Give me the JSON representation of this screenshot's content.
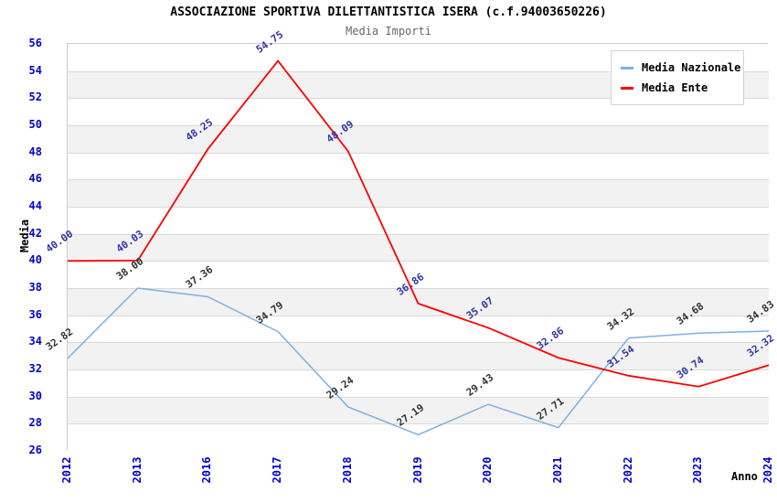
{
  "chart_data": {
    "type": "line",
    "title": "ASSOCIAZIONE SPORTIVA DILETTANTISTICA ISERA (c.f.94003650226)",
    "subtitle": "Media Importi",
    "xlabel": "Anno",
    "ylabel": "Media",
    "categories": [
      "2012",
      "2013",
      "2016",
      "2017",
      "2018",
      "2019",
      "2020",
      "2021",
      "2022",
      "2023",
      "2024"
    ],
    "series": [
      {
        "name": "Media Nazionale",
        "color": "#7cb0e2",
        "label_color": "#333333",
        "values": [
          32.82,
          38.0,
          37.36,
          34.79,
          29.24,
          27.19,
          29.43,
          27.71,
          34.32,
          34.68,
          34.83
        ]
      },
      {
        "name": "Media Ente",
        "color": "#ff0000",
        "label_color": "#3333a8",
        "values": [
          40.0,
          40.03,
          48.25,
          54.75,
          48.09,
          36.86,
          35.07,
          32.86,
          31.54,
          30.74,
          32.32
        ]
      }
    ],
    "ylim": [
      26,
      56
    ],
    "ytick_step": 2,
    "grid": true,
    "legend_position": "top-right",
    "band_fill": "#f2f2f2",
    "grid_color": "#d9d9d9",
    "axis_text_color": "#0000cc",
    "value_decimals": 2
  }
}
